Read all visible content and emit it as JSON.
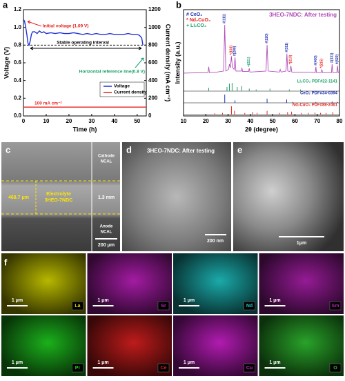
{
  "chart_data": [
    {
      "type": "line",
      "panel": "a",
      "x_label": "Time (h)",
      "y_label": "Voltage (V)",
      "y2_label": "Current density (mA cm⁻²)",
      "xlim": [
        0,
        54
      ],
      "xticks": [
        0,
        10,
        20,
        30,
        40,
        50
      ],
      "ylim": [
        0,
        1.2
      ],
      "yticks": [
        {
          "value": 0,
          "label": "0.0"
        },
        0.2,
        0.4,
        0.6,
        0.8,
        {
          "value": 1,
          "label": "1.0"
        },
        1.2
      ],
      "y2lim": [
        0,
        1200
      ],
      "y2ticks": [
        0,
        200,
        400,
        600,
        800,
        1000,
        1200
      ],
      "series": [
        {
          "name": "Voltage",
          "color": "#1f2fd6",
          "x": [
            0,
            0.5,
            1,
            1.5,
            2,
            2.5,
            3,
            3.5,
            4,
            5,
            6,
            7,
            8,
            9,
            10,
            12,
            14,
            16,
            18,
            20,
            22,
            24,
            26,
            28,
            30,
            32,
            34,
            36,
            38,
            40,
            42,
            44,
            46,
            48,
            50,
            51,
            52,
            52.5
          ],
          "values": [
            1.09,
            1.07,
            1.0,
            0.92,
            0.82,
            0.8,
            0.85,
            0.92,
            0.95,
            0.95,
            0.93,
            0.96,
            0.94,
            0.95,
            0.93,
            0.94,
            0.93,
            0.94,
            0.93,
            0.93,
            0.94,
            0.93,
            0.92,
            0.93,
            0.92,
            0.93,
            0.92,
            0.92,
            0.93,
            0.92,
            0.92,
            0.92,
            0.93,
            0.92,
            0.92,
            0.91,
            0.88,
            0.8
          ]
        },
        {
          "name": "Current density",
          "color": "#e8201c",
          "axis": "y2",
          "x": [
            0,
            54
          ],
          "values": [
            100,
            100
          ]
        }
      ],
      "ref_line": 0.8,
      "legend": "lower right",
      "annotations": [
        {
          "text": "Initial voltage (1.09 V)",
          "color": "#e8201c"
        },
        {
          "text": "Stable operating interval",
          "color": "#000000"
        },
        {
          "text": "Horizontal reference line(0.8 V)",
          "color": "#1aa06a"
        },
        {
          "text": "100 mA cm⁻²",
          "color": "#e8201c"
        }
      ]
    },
    {
      "type": "xrd",
      "panel": "b",
      "title": "3HEO-7NDC: After testing",
      "x_label": "2θ (degree)",
      "y_label": "Intensity (a.u.)",
      "xlim": [
        10,
        80
      ],
      "xticks": [
        10,
        20,
        30,
        40,
        50,
        60,
        70,
        80
      ],
      "ylim": [
        0,
        100
      ],
      "pattern": {
        "color": "#b04ab8",
        "x": [
          10,
          20,
          21,
          21.3,
          21.6,
          25,
          28,
          28.5,
          29,
          30.2,
          30.6,
          31,
          31.5,
          31.9,
          32.7,
          33.1,
          33.5,
          36,
          36.2,
          36.5,
          39.2,
          39.5,
          39.8,
          44,
          47,
          47.5,
          48,
          53,
          53.4,
          53.8,
          56,
          56.4,
          56.8,
          57.8,
          58.2,
          58.6,
          66,
          69.1,
          69.4,
          69.7,
          71.8,
          72.1,
          72.4,
          76.4,
          76.7,
          77,
          78.8,
          79.1,
          79.4,
          80
        ],
        "values": [
          8,
          9,
          9,
          20,
          9,
          10,
          12,
          100,
          12,
          15,
          25,
          18,
          40,
          20,
          15,
          38,
          12,
          12,
          18,
          11,
          11,
          17,
          10,
          11,
          12,
          62,
          12,
          10,
          15,
          10,
          12,
          45,
          12,
          11,
          22,
          10,
          10,
          9,
          20,
          9,
          9,
          15,
          9,
          9,
          25,
          9,
          9,
          22,
          9,
          9
        ]
      },
      "phases": [
        {
          "symbol": "#",
          "name": "CeO₂",
          "color": "#1f2fb0"
        },
        {
          "symbol": "*",
          "name": "Nd₂CuO₄",
          "color": "#e8201c"
        },
        {
          "symbol": "+",
          "name": "Li₂CO₃",
          "color": "#1aa06a"
        }
      ],
      "peak_labels": [
        {
          "x": 28.5,
          "text": "(111)",
          "phase": 0
        },
        {
          "x": 31.5,
          "text": "(103)",
          "phase": 1
        },
        {
          "x": 33.1,
          "text": "(200)",
          "phase": 0
        },
        {
          "x": 39.5,
          "text": "(221)",
          "phase": 2
        },
        {
          "x": 47.5,
          "text": "(220)",
          "phase": 0
        },
        {
          "x": 56.4,
          "text": "(311)",
          "phase": 0
        },
        {
          "x": 58.2,
          "text": "(213)",
          "phase": 1
        },
        {
          "x": 69.4,
          "text": "(400)",
          "phase": 0
        },
        {
          "x": 72.1,
          "text": "(215)",
          "phase": 1
        },
        {
          "x": 76.7,
          "text": "(331)",
          "phase": 0
        },
        {
          "x": 79.1,
          "text": "(420)",
          "phase": 0
        }
      ],
      "references": [
        {
          "name": "Li₂CO₃ PDF#22-1141",
          "color": "#1aa06a",
          "positions": [
            21.3,
            29.5,
            30.6,
            31.8,
            34.1,
            36.1,
            39.5,
            42.6,
            48.8,
            57.5,
            62.5
          ],
          "heights": [
            0.4,
            0.5,
            0.9,
            1,
            0.5,
            0.6,
            0.3,
            0.2,
            0.3,
            0.2,
            0.2
          ]
        },
        {
          "name": "CeO₂ PDF#34-0394",
          "color": "#1f2fb0",
          "positions": [
            28.5,
            33.1,
            47.5,
            56.3,
            59.1,
            69.4,
            76.7,
            79.1
          ],
          "heights": [
            1,
            0.3,
            0.5,
            0.4,
            0.1,
            0.1,
            0.15,
            0.1
          ]
        },
        {
          "name": "Nd₂CuO₄ PDF#88-2461",
          "color": "#e8201c",
          "positions": [
            24,
            27.5,
            31.5,
            32.9,
            37.5,
            41,
            43,
            47.5,
            53,
            56.7,
            58.5,
            63,
            66,
            69,
            71.5,
            74,
            77
          ],
          "heights": [
            0.15,
            0.2,
            1,
            0.45,
            0.2,
            0.3,
            0.2,
            0.45,
            0.2,
            0.3,
            0.35,
            0.2,
            0.2,
            0.25,
            0.2,
            0.2,
            0.3
          ]
        }
      ]
    }
  ],
  "panel_c": {
    "label": "c",
    "cathode": [
      "Cathode",
      "NCAL"
    ],
    "electrolyte": [
      "Electrolyte",
      "3HEO-7NDC"
    ],
    "thickness": "468.7 μm",
    "total": "1.3 mm",
    "anode": [
      "Anode",
      "NCAL"
    ],
    "scale": "200 μm"
  },
  "panel_d": {
    "label": "d",
    "title": "3HEO-7NDC: After testing",
    "scale": "200 nm"
  },
  "panel_e": {
    "label": "e",
    "scale": "1μm"
  },
  "panel_f": {
    "label": "f",
    "maps": [
      {
        "element": "La",
        "color": "#d8d800",
        "scale": "1 μm"
      },
      {
        "element": "Sr",
        "color": "#c020c0",
        "scale": "1 μm"
      },
      {
        "element": "Nd",
        "color": "#20c8c8",
        "scale": "1 μm"
      },
      {
        "element": "Sm",
        "color": "#b020b0",
        "scale": "1 μm"
      },
      {
        "element": "Pr",
        "color": "#20d020",
        "scale": "1 μm"
      },
      {
        "element": "Ce",
        "color": "#e02020",
        "scale": "1 μm"
      },
      {
        "element": "Cu",
        "color": "#d020d0",
        "scale": "1 μm"
      },
      {
        "element": "O",
        "color": "#30c030",
        "scale": "1 μm"
      }
    ]
  }
}
